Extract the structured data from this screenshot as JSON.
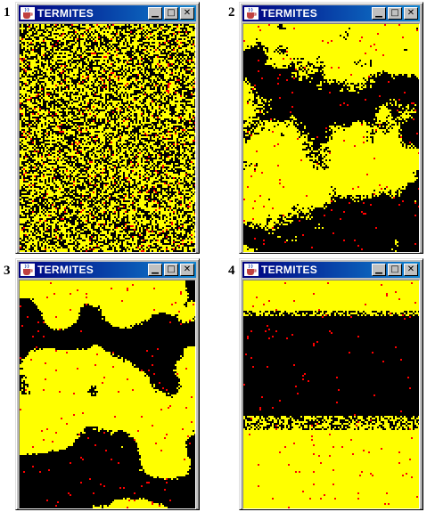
{
  "colors": {
    "wood_chip": "#ffff00",
    "empty_ground": "#000000",
    "termite": "#ff0000",
    "titlebar": "#000080",
    "window_face": "#c0c0c0"
  },
  "window_title": "TERMITES",
  "icons": {
    "app": "java-cup-icon",
    "minimize": "minimize-icon",
    "maximize": "maximize-icon",
    "close": "close-icon"
  },
  "panels": [
    {
      "number": "1",
      "title": "TERMITES",
      "pattern": "random-mix",
      "seed": 11
    },
    {
      "number": "2",
      "title": "TERMITES",
      "pattern": "early-clusters",
      "seed": 27
    },
    {
      "number": "3",
      "title": "TERMITES",
      "pattern": "large-blobs",
      "seed": 43
    },
    {
      "number": "4",
      "title": "TERMITES",
      "pattern": "bands",
      "seed": 59
    }
  ]
}
